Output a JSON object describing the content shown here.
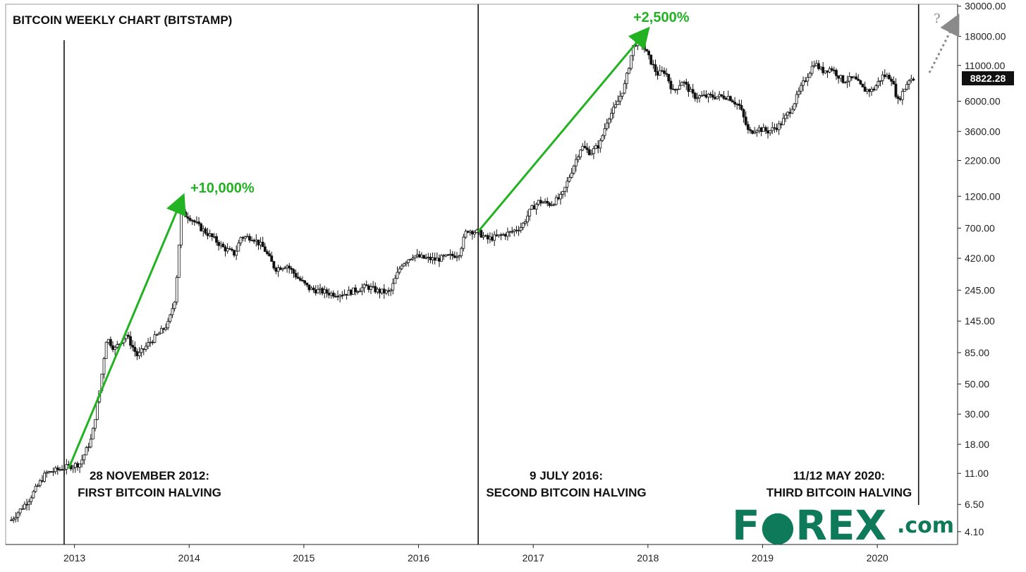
{
  "chart_data": {
    "type": "candlestick",
    "title": "BITCOIN WEEKLY CHART (BITSTAMP)",
    "scale": "log",
    "y_ticks": [
      "30000.00",
      "18000.00",
      "11000.00",
      "6000.00",
      "3600.00",
      "2200.00",
      "1200.00",
      "700.00",
      "420.00",
      "245.00",
      "145.00",
      "85.00",
      "50.00",
      "30.00",
      "18.00",
      "11.00",
      "6.50",
      "4.10"
    ],
    "x_ticks": [
      "2013",
      "2014",
      "2015",
      "2016",
      "2017",
      "2018",
      "2019",
      "2020"
    ],
    "x_range": [
      2012.4,
      2020.7
    ],
    "y_range": [
      3.3,
      31000
    ],
    "last_price": "8822.28",
    "series": [
      {
        "x": [
          2012.45,
          2012.6,
          2012.75,
          2012.9,
          2013.05,
          2013.15,
          2013.22,
          2013.28,
          2013.35,
          2013.45,
          2013.55,
          2013.65,
          2013.75,
          2013.82,
          2013.88,
          2013.93,
          2014.0,
          2014.1,
          2014.2,
          2014.3,
          2014.4,
          2014.45,
          2014.55,
          2014.65,
          2014.75,
          2014.85,
          2014.95,
          2015.05,
          2015.15,
          2015.25,
          2015.35,
          2015.45,
          2015.55,
          2015.65,
          2015.75,
          2015.85,
          2015.95,
          2016.05,
          2016.15,
          2016.25,
          2016.35,
          2016.42,
          2016.52,
          2016.6,
          2016.7,
          2016.8,
          2016.9,
          2016.98,
          2017.05,
          2017.15,
          2017.25,
          2017.35,
          2017.42,
          2017.5,
          2017.58,
          2017.65,
          2017.72,
          2017.8,
          2017.87,
          2017.93,
          2017.97,
          2018.02,
          2018.08,
          2018.15,
          2018.22,
          2018.3,
          2018.4,
          2018.5,
          2018.6,
          2018.7,
          2018.8,
          2018.88,
          2018.95,
          2019.05,
          2019.15,
          2019.25,
          2019.35,
          2019.45,
          2019.52,
          2019.6,
          2019.7,
          2019.8,
          2019.88,
          2019.96,
          2020.05,
          2020.12,
          2020.18,
          2020.22,
          2020.28,
          2020.33
        ],
        "close": [
          5,
          7,
          11,
          12,
          13,
          20,
          45,
          110,
          90,
          115,
          80,
          100,
          120,
          140,
          220,
          900,
          850,
          700,
          600,
          500,
          450,
          600,
          600,
          500,
          350,
          375,
          300,
          250,
          240,
          230,
          230,
          245,
          260,
          240,
          235,
          380,
          440,
          420,
          410,
          430,
          450,
          680,
          650,
          580,
          610,
          650,
          720,
          960,
          1100,
          1050,
          1200,
          2000,
          2800,
          2500,
          2900,
          4500,
          5500,
          8000,
          15000,
          18000,
          14500,
          12000,
          9500,
          10000,
          7000,
          8500,
          6500,
          6500,
          6500,
          6500,
          5500,
          3500,
          3800,
          3600,
          4000,
          5300,
          8000,
          11500,
          10000,
          10500,
          8500,
          8800,
          7300,
          7200,
          9300,
          9000,
          6000,
          7000,
          8800,
          8822
        ]
      }
    ],
    "annotations": [
      {
        "label": "+10,000%",
        "from_x": 2012.95,
        "from_y": 12,
        "to_x": 2013.93,
        "to_y": 1110
      },
      {
        "label": "+2,500%",
        "from_x": 2016.52,
        "from_y": 660,
        "to_x": 2017.97,
        "to_y": 19000
      }
    ],
    "halvings": [
      {
        "x": 2012.91,
        "date": "28 NOVEMBER 2012:",
        "event": "FIRST BITCOIN HALVING"
      },
      {
        "x": 2016.52,
        "date": "9 JULY 2016:",
        "event": "SECOND BITCOIN HALVING"
      },
      {
        "x": 2020.36,
        "date": "11/12 MAY 2020:",
        "event": "THIRD BITCOIN HALVING"
      }
    ],
    "question_mark": "?"
  },
  "brand": {
    "logo_main": "F●REX",
    "logo_suffix": ".com",
    "color": "#0f7a5a"
  },
  "colors": {
    "arrow": "#22b222",
    "candles": "#111111",
    "axis": "#222222",
    "price_tag_bg": "#111111",
    "dotted_arrow": "#8a8a8a"
  }
}
